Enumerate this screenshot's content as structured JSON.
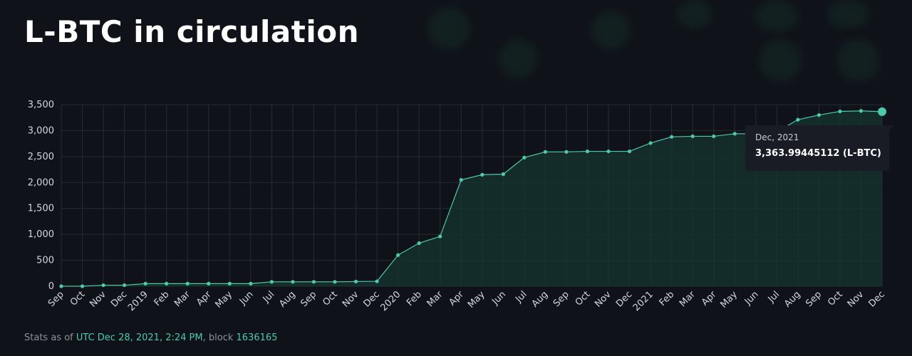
{
  "title": "L-BTC in circulation",
  "chart_data": {
    "type": "area",
    "title": "L-BTC in circulation",
    "xlabel": "",
    "ylabel": "",
    "ylim": [
      0,
      3500
    ],
    "yticks": [
      "0",
      "500",
      "1,000",
      "1,500",
      "2,000",
      "2,500",
      "3,000",
      "3,500"
    ],
    "grid": true,
    "categories": [
      "Sep",
      "Oct",
      "Nov",
      "Dec",
      "2019",
      "Feb",
      "Mar",
      "Apr",
      "May",
      "Jun",
      "Jul",
      "Aug",
      "Sep",
      "Oct",
      "Nov",
      "Dec",
      "2020",
      "Feb",
      "Mar",
      "Apr",
      "May",
      "Jun",
      "Jul",
      "Aug",
      "Sep",
      "Oct",
      "Nov",
      "Dec",
      "2021",
      "Feb",
      "Mar",
      "Apr",
      "May",
      "Jun",
      "Jul",
      "Aug",
      "Sep",
      "Oct",
      "Nov",
      "Dec"
    ],
    "series": [
      {
        "values": [
          0,
          0,
          20,
          20,
          50,
          50,
          50,
          50,
          50,
          50,
          85,
          85,
          85,
          85,
          90,
          95,
          600,
          830,
          960,
          2050,
          2150,
          2160,
          2480,
          2590,
          2590,
          2600,
          2600,
          2600,
          2760,
          2880,
          2890,
          2890,
          2940,
          2940,
          2980,
          3210,
          3300,
          3370,
          3380,
          3364
        ]
      }
    ],
    "colors": {
      "line": "#4fc9ae",
      "fill": "#163530",
      "grid": "#262c35"
    },
    "tooltip": {
      "date": "Dec, 2021",
      "value": "3,363.99445112 (L-BTC)"
    }
  },
  "footer": {
    "prefix": "Stats as of",
    "date": "UTC Dec 28, 2021, 2:24 PM",
    "mid": ", block",
    "block": "1636165"
  }
}
